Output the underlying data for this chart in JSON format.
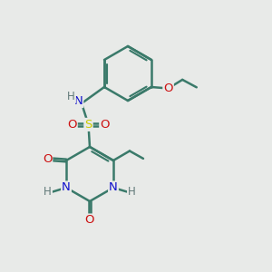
{
  "background_color": "#e8eae8",
  "bond_color": "#3a7a6a",
  "bond_width": 1.8,
  "atom_colors": {
    "C": "#3a7a6a",
    "N": "#1010cc",
    "O": "#cc1010",
    "S": "#cccc00",
    "H": "#607878"
  },
  "font_size": 8.5,
  "fig_size": [
    3.0,
    3.0
  ],
  "dpi": 100,
  "xlim": [
    0,
    10
  ],
  "ylim": [
    0,
    10
  ]
}
